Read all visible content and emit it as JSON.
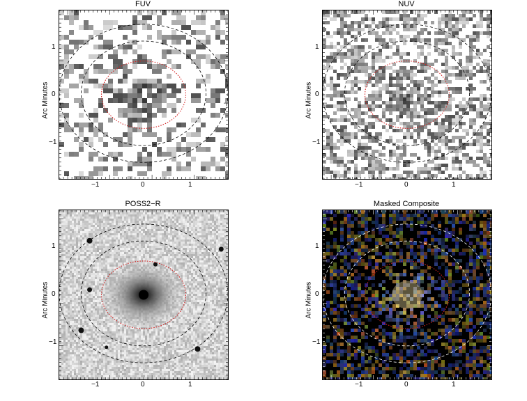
{
  "panels": [
    {
      "title": "FUV",
      "ylabel": "Arc Minutes",
      "xticks": [
        "−1",
        "0",
        "1"
      ],
      "yticks": [
        "1",
        "0",
        "−1"
      ],
      "style": "grayscale-sparse"
    },
    {
      "title": "NUV",
      "ylabel": "Arc Minutes",
      "xticks": [
        "−1",
        "0",
        "1"
      ],
      "yticks": [
        "1",
        "0",
        "−1"
      ],
      "style": "grayscale-dense"
    },
    {
      "title": "POSS2−R",
      "ylabel": "Arc Minutes",
      "xticks": [
        "−1",
        "0",
        "1"
      ],
      "yticks": [
        "1",
        "0",
        "−1"
      ],
      "style": "optical"
    },
    {
      "title": "Masked Composite",
      "ylabel": "Arc Minutes",
      "xticks": [
        "−1",
        "0",
        "1"
      ],
      "yticks": [
        "1",
        "0",
        "−1"
      ],
      "style": "color-composite"
    }
  ],
  "colors": {
    "inner_ellipse": "#d42020",
    "outer_ellipses_light": "#000000",
    "outer_ellipses_dark": "#ffffff",
    "composite_blue": "#2a3f9a",
    "composite_orange": "#c8a040"
  }
}
